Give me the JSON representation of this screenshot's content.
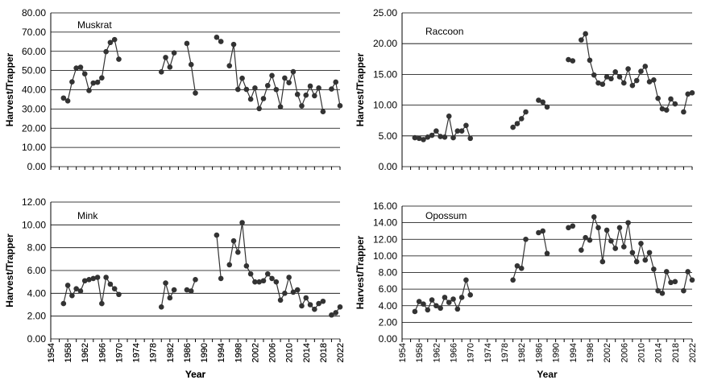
{
  "chart_data": [
    {
      "type": "line",
      "title": "Muskrat",
      "xlabel": "Year",
      "ylabel": "Harvest/Trapper",
      "ylim": [
        0,
        80
      ],
      "ystep": 10,
      "ydecimals": 2,
      "xlim": [
        1954,
        2022
      ],
      "xtick_labels": [
        "1954",
        "1958",
        "1962",
        "1966",
        "1970",
        "1974",
        "1978",
        "1982",
        "1986",
        "1990",
        "1994",
        "1998",
        "2002",
        "2006",
        "2010",
        "2014",
        "2018",
        "2022"
      ],
      "segments": [
        {
          "x": [
            1957,
            1958,
            1959,
            1960,
            1961,
            1962,
            1963,
            1964,
            1965,
            1966,
            1967,
            1968,
            1969,
            1970
          ],
          "y": [
            35.7,
            34.2,
            44.1,
            51.3,
            51.7,
            48.3,
            39.6,
            43.5,
            43.9,
            46.2,
            59.8,
            64.6,
            66.1,
            55.9
          ]
        },
        {
          "x": [
            1980,
            1981,
            1982,
            1983
          ],
          "y": [
            49.3,
            56.8,
            51.8,
            59.2
          ]
        },
        {
          "x": [
            1986,
            1987,
            1988
          ],
          "y": [
            64.1,
            53.1,
            38.3
          ]
        },
        {
          "x": [
            1993,
            1994
          ],
          "y": [
            67.3,
            65.1
          ]
        },
        {
          "x": [
            1996,
            1997,
            1998,
            1999,
            2000,
            2001,
            2002,
            2003,
            2004,
            2005,
            2006,
            2007,
            2008,
            2009,
            2010,
            2011,
            2012,
            2013,
            2014,
            2015,
            2016,
            2017,
            2018
          ],
          "y": [
            52.5,
            63.6,
            40.2,
            46.0,
            40.2,
            35.1,
            40.9,
            30.2,
            35.4,
            42.2,
            47.4,
            40.1,
            31.1,
            46.1,
            43.7,
            49.4,
            37.6,
            31.6,
            37.2,
            41.9,
            36.9,
            40.9,
            28.6
          ]
        },
        {
          "x": [
            2020,
            2021,
            2022
          ],
          "y": [
            40.4,
            44.0,
            31.7
          ]
        }
      ]
    },
    {
      "type": "line",
      "title": "Raccoon",
      "xlabel": "",
      "ylabel": "Harvest/Trapper",
      "ylim": [
        0,
        25
      ],
      "ystep": 5,
      "ydecimals": 2,
      "xlim": [
        1954,
        2022
      ],
      "xtick_labels": [],
      "segments": [
        {
          "x": [
            1957,
            1958,
            1959,
            1960,
            1961,
            1962,
            1963,
            1964,
            1965,
            1966,
            1967,
            1968,
            1969,
            1970
          ],
          "y": [
            4.7,
            4.6,
            4.4,
            4.8,
            5.1,
            5.8,
            4.9,
            4.8,
            8.2,
            4.7,
            5.8,
            5.8,
            6.7,
            4.6
          ]
        },
        {
          "x": [
            1980,
            1981,
            1982,
            1983
          ],
          "y": [
            6.4,
            7.0,
            7.8,
            8.9
          ]
        },
        {
          "x": [
            1986,
            1987,
            1988
          ],
          "y": [
            10.8,
            10.5,
            9.7
          ]
        },
        {
          "x": [
            1993,
            1994
          ],
          "y": [
            17.4,
            17.2
          ]
        },
        {
          "x": [
            1996,
            1997,
            1998,
            1999,
            2000,
            2001,
            2002,
            2003,
            2004,
            2005,
            2006,
            2007,
            2008,
            2009,
            2010,
            2011,
            2012,
            2013,
            2014,
            2015,
            2016,
            2017,
            2018
          ],
          "y": [
            20.6,
            21.6,
            17.3,
            14.9,
            13.6,
            13.4,
            14.6,
            14.3,
            15.4,
            14.6,
            13.6,
            15.9,
            13.2,
            14.0,
            15.5,
            16.3,
            13.8,
            14.1,
            11.1,
            9.4,
            9.2,
            11.0,
            10.2
          ]
        },
        {
          "x": [
            2020,
            2021,
            2022
          ],
          "y": [
            8.9,
            11.8,
            12.0
          ]
        }
      ]
    },
    {
      "type": "line",
      "title": "Mink",
      "xlabel": "Year",
      "ylabel": "Harvest/Trapper",
      "ylim": [
        0,
        12
      ],
      "ystep": 2,
      "ydecimals": 2,
      "xlim": [
        1954,
        2022
      ],
      "xtick_labels": [
        "1954",
        "1958",
        "1962",
        "1966",
        "1970",
        "1974",
        "1978",
        "1982",
        "1986",
        "1990",
        "1994",
        "1998",
        "2002",
        "2006",
        "2010",
        "2014",
        "2018",
        "2022"
      ],
      "segments": [
        {
          "x": [
            1957,
            1958,
            1959,
            1960,
            1961,
            1962,
            1963,
            1964,
            1965,
            1966,
            1967,
            1968,
            1969,
            1970
          ],
          "y": [
            3.1,
            4.7,
            3.8,
            4.4,
            4.2,
            5.1,
            5.2,
            5.3,
            5.4,
            3.1,
            5.4,
            4.8,
            4.4,
            3.9
          ]
        },
        {
          "x": [
            1980,
            1981,
            1982,
            1983
          ],
          "y": [
            2.8,
            4.9,
            3.6,
            4.3
          ]
        },
        {
          "x": [
            1986,
            1987,
            1988
          ],
          "y": [
            4.3,
            4.2,
            5.2
          ]
        },
        {
          "x": [
            1993,
            1994
          ],
          "y": [
            9.1,
            5.3
          ]
        },
        {
          "x": [
            1996,
            1997,
            1998,
            1999,
            2000,
            2001,
            2002,
            2003,
            2004,
            2005,
            2006,
            2007,
            2008,
            2009,
            2010,
            2011,
            2012,
            2013,
            2014,
            2015,
            2016,
            2017,
            2018
          ],
          "y": [
            6.5,
            8.6,
            7.6,
            10.2,
            6.4,
            5.7,
            5.0,
            5.0,
            5.1,
            5.7,
            5.3,
            5.0,
            3.4,
            4.0,
            5.4,
            4.1,
            4.3,
            2.9,
            3.6,
            3.0,
            2.6,
            3.1,
            3.3
          ]
        },
        {
          "x": [
            2020,
            2021,
            2022
          ],
          "y": [
            2.1,
            2.3,
            2.8
          ]
        }
      ]
    },
    {
      "type": "line",
      "title": "Opossum",
      "xlabel": "Year",
      "ylabel": "Harvest/Trapper",
      "ylim": [
        0,
        16
      ],
      "ystep": 2,
      "ydecimals": 2,
      "xlim": [
        1954,
        2022
      ],
      "xtick_labels": [
        "1954",
        "1958",
        "1962",
        "1966",
        "1970",
        "1974",
        "1978",
        "1982",
        "1986",
        "1990",
        "1994",
        "1998",
        "2002",
        "2006",
        "2010",
        "2014",
        "2018",
        "2022"
      ],
      "segments": [
        {
          "x": [
            1957,
            1958,
            1959,
            1960,
            1961,
            1962,
            1963,
            1964,
            1965,
            1966,
            1967,
            1968,
            1969,
            1970
          ],
          "y": [
            3.3,
            4.5,
            4.2,
            3.5,
            4.7,
            4.0,
            3.7,
            5.0,
            4.4,
            4.8,
            3.6,
            5.0,
            7.1,
            5.3
          ]
        },
        {
          "x": [
            1980,
            1981,
            1982,
            1983
          ],
          "y": [
            7.1,
            8.8,
            8.5,
            12.0
          ]
        },
        {
          "x": [
            1986,
            1987,
            1988
          ],
          "y": [
            12.8,
            13.0,
            10.3
          ]
        },
        {
          "x": [
            1993,
            1994
          ],
          "y": [
            13.4,
            13.6
          ]
        },
        {
          "x": [
            1996,
            1997,
            1998,
            1999,
            2000,
            2001,
            2002,
            2003,
            2004,
            2005,
            2006,
            2007,
            2008,
            2009,
            2010,
            2011,
            2012,
            2013,
            2014,
            2015,
            2016,
            2017,
            2018
          ],
          "y": [
            10.7,
            12.2,
            11.9,
            14.7,
            13.4,
            9.3,
            13.1,
            11.8,
            10.9,
            13.4,
            11.1,
            14.0,
            10.4,
            9.3,
            11.5,
            9.5,
            10.4,
            8.4,
            5.8,
            5.5,
            8.1,
            6.8,
            6.9
          ]
        },
        {
          "x": [
            2020,
            2021,
            2022
          ],
          "y": [
            5.8,
            8.1,
            7.1
          ]
        }
      ]
    }
  ]
}
